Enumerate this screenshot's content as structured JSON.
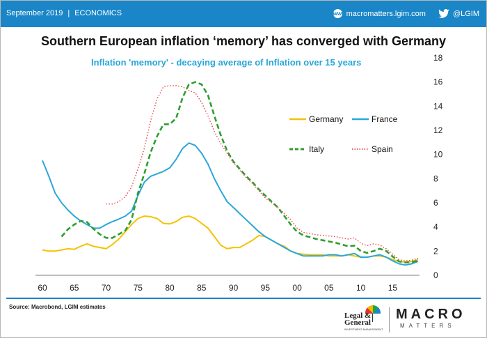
{
  "header": {
    "date": "September 2019",
    "section": "ECONOMICS",
    "website": "macromatters.lgim.com",
    "twitter": "@LGIM",
    "bar_color": "#1a86c8"
  },
  "footer": {
    "source": "Source: Macrobond, LGIM estimates",
    "lg_name_1": "Legal &",
    "lg_name_2": "General",
    "lg_sub": "INVESTMENT MANAGEMENT",
    "brand_main": "MACRO",
    "brand_sub": "MATTERS"
  },
  "chart_data": {
    "type": "line",
    "title": "Southern European inflation ‘memory’ has converged with Germany",
    "subtitle": "Inflation  'memory' - decaying average of Inflation  over 15 years",
    "xlabel": "",
    "ylabel": "",
    "xlim": [
      1960,
      2019
    ],
    "ylim": [
      0,
      18
    ],
    "x_ticks": [
      1960,
      1965,
      1970,
      1975,
      1980,
      1985,
      1990,
      1995,
      2000,
      2005,
      2010,
      2015
    ],
    "x_tick_labels": [
      "60",
      "65",
      "70",
      "75",
      "80",
      "85",
      "90",
      "95",
      "00",
      "05",
      "10",
      "15"
    ],
    "y_ticks": [
      0,
      2,
      4,
      6,
      8,
      10,
      12,
      14,
      16,
      18
    ],
    "y_axis_side": "right",
    "grid": false,
    "legend_position": "right-middle",
    "series": [
      {
        "name": "Germany",
        "color": "#f5c200",
        "dash": "solid",
        "points": [
          [
            1960,
            2.1
          ],
          [
            1961,
            2.0
          ],
          [
            1962,
            2.0
          ],
          [
            1963,
            2.1
          ],
          [
            1964,
            2.2
          ],
          [
            1965,
            2.15
          ],
          [
            1966,
            2.4
          ],
          [
            1967,
            2.6
          ],
          [
            1968,
            2.4
          ],
          [
            1969,
            2.3
          ],
          [
            1970,
            2.2
          ],
          [
            1971,
            2.55
          ],
          [
            1972,
            3.0
          ],
          [
            1973,
            3.6
          ],
          [
            1974,
            4.2
          ],
          [
            1975,
            4.7
          ],
          [
            1976,
            4.9
          ],
          [
            1977,
            4.85
          ],
          [
            1978,
            4.7
          ],
          [
            1979,
            4.3
          ],
          [
            1980,
            4.25
          ],
          [
            1981,
            4.45
          ],
          [
            1982,
            4.8
          ],
          [
            1983,
            4.9
          ],
          [
            1984,
            4.7
          ],
          [
            1985,
            4.3
          ],
          [
            1986,
            3.9
          ],
          [
            1987,
            3.2
          ],
          [
            1988,
            2.5
          ],
          [
            1989,
            2.2
          ],
          [
            1990,
            2.3
          ],
          [
            1991,
            2.3
          ],
          [
            1992,
            2.6
          ],
          [
            1993,
            2.9
          ],
          [
            1994,
            3.3
          ],
          [
            1995,
            3.2
          ],
          [
            1996,
            2.9
          ],
          [
            1997,
            2.6
          ],
          [
            1998,
            2.4
          ],
          [
            1999,
            2.0
          ],
          [
            2000,
            1.8
          ],
          [
            2001,
            1.75
          ],
          [
            2002,
            1.7
          ],
          [
            2003,
            1.7
          ],
          [
            2004,
            1.7
          ],
          [
            2005,
            1.6
          ],
          [
            2006,
            1.6
          ],
          [
            2007,
            1.6
          ],
          [
            2008,
            1.7
          ],
          [
            2009,
            1.6
          ],
          [
            2010,
            1.5
          ],
          [
            2011,
            1.5
          ],
          [
            2012,
            1.6
          ],
          [
            2013,
            1.6
          ],
          [
            2014,
            1.5
          ],
          [
            2015,
            1.3
          ],
          [
            2016,
            1.15
          ],
          [
            2017,
            1.1
          ],
          [
            2018,
            1.15
          ],
          [
            2019,
            1.3
          ]
        ]
      },
      {
        "name": "France",
        "color": "#2aa7d9",
        "dash": "solid",
        "points": [
          [
            1960,
            9.5
          ],
          [
            1961,
            8.2
          ],
          [
            1962,
            6.8
          ],
          [
            1963,
            6.0
          ],
          [
            1964,
            5.4
          ],
          [
            1965,
            4.9
          ],
          [
            1966,
            4.5
          ],
          [
            1967,
            4.2
          ],
          [
            1968,
            3.9
          ],
          [
            1969,
            3.9
          ],
          [
            1970,
            4.2
          ],
          [
            1971,
            4.45
          ],
          [
            1972,
            4.65
          ],
          [
            1973,
            4.9
          ],
          [
            1974,
            5.3
          ],
          [
            1975,
            6.6
          ],
          [
            1976,
            7.7
          ],
          [
            1977,
            8.2
          ],
          [
            1978,
            8.4
          ],
          [
            1979,
            8.6
          ],
          [
            1980,
            8.9
          ],
          [
            1981,
            9.6
          ],
          [
            1982,
            10.5
          ],
          [
            1983,
            10.95
          ],
          [
            1984,
            10.75
          ],
          [
            1985,
            10.1
          ],
          [
            1986,
            9.2
          ],
          [
            1987,
            8.0
          ],
          [
            1988,
            7.0
          ],
          [
            1989,
            6.1
          ],
          [
            1990,
            5.6
          ],
          [
            1991,
            5.1
          ],
          [
            1992,
            4.6
          ],
          [
            1993,
            4.1
          ],
          [
            1994,
            3.6
          ],
          [
            1995,
            3.2
          ],
          [
            1996,
            2.9
          ],
          [
            1997,
            2.6
          ],
          [
            1998,
            2.3
          ],
          [
            1999,
            2.0
          ],
          [
            2000,
            1.8
          ],
          [
            2001,
            1.6
          ],
          [
            2002,
            1.6
          ],
          [
            2003,
            1.6
          ],
          [
            2004,
            1.6
          ],
          [
            2005,
            1.7
          ],
          [
            2006,
            1.7
          ],
          [
            2007,
            1.6
          ],
          [
            2008,
            1.7
          ],
          [
            2009,
            1.8
          ],
          [
            2010,
            1.5
          ],
          [
            2011,
            1.5
          ],
          [
            2012,
            1.6
          ],
          [
            2013,
            1.7
          ],
          [
            2014,
            1.5
          ],
          [
            2015,
            1.2
          ],
          [
            2016,
            0.95
          ],
          [
            2017,
            0.85
          ],
          [
            2018,
            0.95
          ],
          [
            2019,
            1.15
          ]
        ]
      },
      {
        "name": "Italy",
        "color": "#2e9e2e",
        "dash": "dashed",
        "points": [
          [
            1963,
            3.2
          ],
          [
            1964,
            3.8
          ],
          [
            1965,
            4.2
          ],
          [
            1966,
            4.5
          ],
          [
            1967,
            4.4
          ],
          [
            1968,
            3.85
          ],
          [
            1969,
            3.4
          ],
          [
            1970,
            3.1
          ],
          [
            1971,
            3.1
          ],
          [
            1972,
            3.4
          ],
          [
            1973,
            3.7
          ],
          [
            1974,
            4.6
          ],
          [
            1975,
            6.8
          ],
          [
            1976,
            8.4
          ],
          [
            1977,
            10.2
          ],
          [
            1978,
            11.5
          ],
          [
            1979,
            12.5
          ],
          [
            1980,
            12.5
          ],
          [
            1981,
            13.0
          ],
          [
            1982,
            14.7
          ],
          [
            1983,
            15.8
          ],
          [
            1984,
            16.0
          ],
          [
            1985,
            15.8
          ],
          [
            1986,
            14.9
          ],
          [
            1987,
            13.2
          ],
          [
            1988,
            11.6
          ],
          [
            1989,
            10.3
          ],
          [
            1990,
            9.4
          ],
          [
            1991,
            8.8
          ],
          [
            1992,
            8.2
          ],
          [
            1993,
            7.7
          ],
          [
            1994,
            7.1
          ],
          [
            1995,
            6.6
          ],
          [
            1996,
            6.1
          ],
          [
            1997,
            5.6
          ],
          [
            1998,
            4.9
          ],
          [
            1999,
            4.2
          ],
          [
            2000,
            3.6
          ],
          [
            2001,
            3.3
          ],
          [
            2002,
            3.15
          ],
          [
            2003,
            3.0
          ],
          [
            2004,
            2.9
          ],
          [
            2005,
            2.8
          ],
          [
            2006,
            2.7
          ],
          [
            2007,
            2.55
          ],
          [
            2008,
            2.4
          ],
          [
            2009,
            2.45
          ],
          [
            2010,
            2.0
          ],
          [
            2011,
            1.85
          ],
          [
            2012,
            2.0
          ],
          [
            2013,
            2.2
          ],
          [
            2014,
            2.0
          ],
          [
            2015,
            1.55
          ],
          [
            2016,
            1.15
          ],
          [
            2017,
            1.05
          ],
          [
            2018,
            1.1
          ],
          [
            2019,
            1.2
          ]
        ]
      },
      {
        "name": "Spain",
        "color": "#e8454a",
        "dash": "dotted",
        "points": [
          [
            1970,
            5.9
          ],
          [
            1971,
            5.9
          ],
          [
            1972,
            6.1
          ],
          [
            1973,
            6.5
          ],
          [
            1974,
            7.3
          ],
          [
            1975,
            8.8
          ],
          [
            1976,
            10.5
          ],
          [
            1977,
            12.8
          ],
          [
            1978,
            14.6
          ],
          [
            1979,
            15.6
          ],
          [
            1980,
            15.7
          ],
          [
            1981,
            15.7
          ],
          [
            1982,
            15.6
          ],
          [
            1983,
            15.3
          ],
          [
            1984,
            15.1
          ],
          [
            1985,
            14.3
          ],
          [
            1986,
            13.2
          ],
          [
            1987,
            11.9
          ],
          [
            1988,
            10.9
          ],
          [
            1989,
            10.1
          ],
          [
            1990,
            9.3
          ],
          [
            1991,
            8.7
          ],
          [
            1992,
            8.1
          ],
          [
            1993,
            7.6
          ],
          [
            1994,
            7.0
          ],
          [
            1995,
            6.4
          ],
          [
            1996,
            6.0
          ],
          [
            1997,
            5.6
          ],
          [
            1998,
            5.1
          ],
          [
            1999,
            4.6
          ],
          [
            2000,
            3.9
          ],
          [
            2001,
            3.55
          ],
          [
            2002,
            3.45
          ],
          [
            2003,
            3.35
          ],
          [
            2004,
            3.3
          ],
          [
            2005,
            3.25
          ],
          [
            2006,
            3.2
          ],
          [
            2007,
            3.1
          ],
          [
            2008,
            3.0
          ],
          [
            2009,
            3.1
          ],
          [
            2010,
            2.65
          ],
          [
            2011,
            2.45
          ],
          [
            2012,
            2.6
          ],
          [
            2013,
            2.5
          ],
          [
            2014,
            2.2
          ],
          [
            2015,
            1.75
          ],
          [
            2016,
            1.3
          ],
          [
            2017,
            1.2
          ],
          [
            2018,
            1.25
          ],
          [
            2019,
            1.4
          ]
        ]
      }
    ]
  }
}
